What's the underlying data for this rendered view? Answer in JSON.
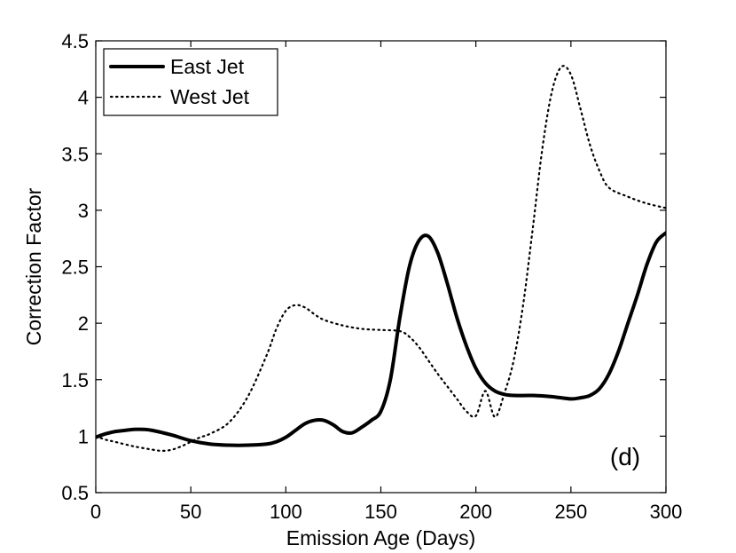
{
  "chart_data": {
    "type": "line",
    "title": "",
    "xlabel": "Emission Age (Days)",
    "ylabel": "Correction Factor",
    "xlim": [
      0,
      300
    ],
    "ylim": [
      0.5,
      4.5
    ],
    "xticks": [
      0,
      50,
      100,
      150,
      200,
      250,
      300
    ],
    "yticks": [
      0.5,
      1,
      1.5,
      2,
      2.5,
      3,
      3.5,
      4,
      4.5
    ],
    "xtick_labels": [
      "0",
      "50",
      "100",
      "150",
      "200",
      "250",
      "300"
    ],
    "ytick_labels": [
      "0.5",
      "1",
      "1.5",
      "2",
      "2.5",
      "3",
      "3.5",
      "4",
      "4.5"
    ],
    "grid": false,
    "legend_position": "top-left",
    "annotation": "(d)",
    "series": [
      {
        "name": "East Jet",
        "style": "solid",
        "color": "#000000",
        "x": [
          0,
          5,
          10,
          15,
          20,
          25,
          30,
          40,
          50,
          60,
          70,
          80,
          90,
          95,
          100,
          105,
          110,
          115,
          120,
          125,
          130,
          135,
          140,
          145,
          150,
          155,
          160,
          165,
          170,
          175,
          180,
          185,
          190,
          195,
          200,
          205,
          210,
          215,
          220,
          230,
          240,
          250,
          255,
          260,
          265,
          270,
          275,
          280,
          285,
          290,
          295,
          300
        ],
        "y": [
          0.99,
          1.02,
          1.04,
          1.05,
          1.06,
          1.06,
          1.05,
          1.01,
          0.96,
          0.93,
          0.92,
          0.92,
          0.93,
          0.95,
          0.99,
          1.05,
          1.11,
          1.14,
          1.14,
          1.1,
          1.04,
          1.03,
          1.08,
          1.14,
          1.22,
          1.5,
          2.05,
          2.5,
          2.73,
          2.77,
          2.62,
          2.35,
          2.05,
          1.8,
          1.6,
          1.47,
          1.4,
          1.37,
          1.36,
          1.36,
          1.35,
          1.33,
          1.34,
          1.36,
          1.42,
          1.55,
          1.75,
          2.0,
          2.25,
          2.52,
          2.72,
          2.8
        ]
      },
      {
        "name": "West Jet",
        "style": "dotted",
        "color": "#000000",
        "x": [
          0,
          5,
          10,
          20,
          30,
          35,
          40,
          45,
          50,
          55,
          60,
          70,
          80,
          90,
          95,
          100,
          105,
          110,
          115,
          120,
          130,
          140,
          150,
          160,
          165,
          170,
          175,
          180,
          185,
          190,
          195,
          200,
          205,
          210,
          215,
          220,
          225,
          230,
          235,
          240,
          245,
          250,
          255,
          260,
          265,
          270,
          280,
          290,
          300
        ],
        "y": [
          1.0,
          0.97,
          0.95,
          0.91,
          0.88,
          0.87,
          0.88,
          0.91,
          0.95,
          0.99,
          1.02,
          1.12,
          1.35,
          1.72,
          1.95,
          2.11,
          2.16,
          2.14,
          2.08,
          2.03,
          1.98,
          1.95,
          1.94,
          1.93,
          1.88,
          1.79,
          1.67,
          1.55,
          1.44,
          1.33,
          1.22,
          1.18,
          1.4,
          1.17,
          1.38,
          1.68,
          2.18,
          2.85,
          3.55,
          4.05,
          4.27,
          4.2,
          3.9,
          3.58,
          3.35,
          3.2,
          3.12,
          3.06,
          3.02
        ]
      }
    ]
  }
}
